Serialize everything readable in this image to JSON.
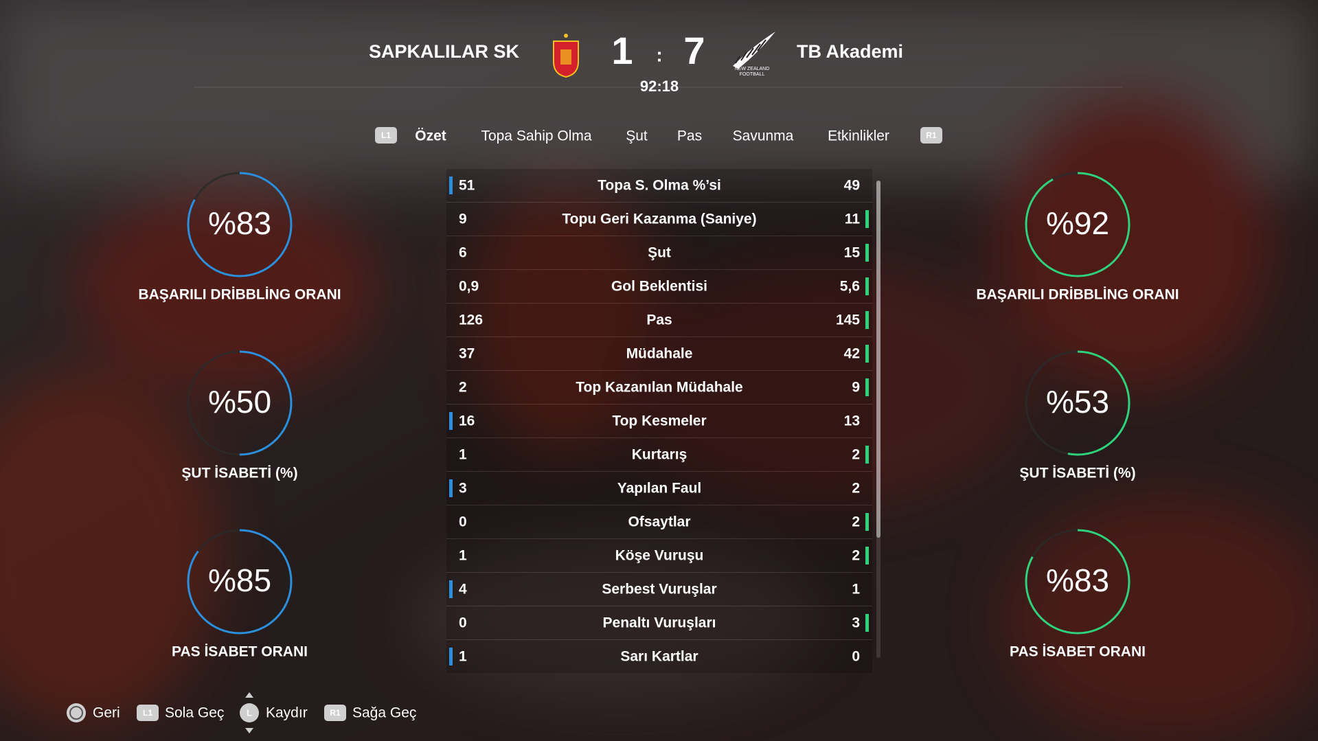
{
  "header": {
    "home_team": "SAPKALILAR SK",
    "home_score": 1,
    "separator": ":",
    "away_score": 7,
    "away_team": "TB Akademi",
    "clock": "92:18",
    "away_logo_text": [
      "NEW ZEALAND",
      "FOOTBALL"
    ]
  },
  "tabs": {
    "prev_button": "L1",
    "items": [
      "Özet",
      "Topa Sahip Olma",
      "Şut",
      "Pas",
      "Savunma",
      "Etkinlikler"
    ],
    "active": 0,
    "next_button": "R1"
  },
  "stats": {
    "home_color": "#2b8fdc",
    "away_color": "#2fd17a",
    "rows": [
      {
        "home": "51",
        "label": "Topa S. Olma %’si",
        "away": "49"
      },
      {
        "home": "9",
        "label": "Topu Geri Kazanma (Saniye)",
        "away": "11"
      },
      {
        "home": "6",
        "label": "Şut",
        "away": "15"
      },
      {
        "home": "0,9",
        "label": "Gol Beklentisi",
        "away": "5,6"
      },
      {
        "home": "126",
        "label": "Pas",
        "away": "145"
      },
      {
        "home": "37",
        "label": "Müdahale",
        "away": "42"
      },
      {
        "home": "2",
        "label": "Top Kazanılan Müdahale",
        "away": "9"
      },
      {
        "home": "16",
        "label": "Top Kesmeler",
        "away": "13"
      },
      {
        "home": "1",
        "label": "Kurtarış",
        "away": "2"
      },
      {
        "home": "3",
        "label": "Yapılan Faul",
        "away": "2"
      },
      {
        "home": "0",
        "label": "Ofsaytlar",
        "away": "2"
      },
      {
        "home": "1",
        "label": "Köşe Vuruşu",
        "away": "2"
      },
      {
        "home": "4",
        "label": "Serbest Vuruşlar",
        "away": "1"
      },
      {
        "home": "0",
        "label": "Penaltı Vuruşları",
        "away": "3"
      },
      {
        "home": "1",
        "label": "Sarı Kartlar",
        "away": "0"
      }
    ]
  },
  "gauges": {
    "home": [
      {
        "value": 83,
        "label": "%83",
        "caption": "BAŞARILI DRİBBLİNG ORANI"
      },
      {
        "value": 50,
        "label": "%50",
        "caption": "ŞUT İSABETİ (%)"
      },
      {
        "value": 85,
        "label": "%85",
        "caption": "PAS İSABET ORANI"
      }
    ],
    "away": [
      {
        "value": 92,
        "label": "%92",
        "caption": "BAŞARILI DRİBBLİNG ORANI"
      },
      {
        "value": 53,
        "label": "%53",
        "caption": "ŞUT İSABETİ (%)"
      },
      {
        "value": 83,
        "label": "%83",
        "caption": "PAS İSABET ORANI"
      }
    ]
  },
  "footer": [
    {
      "text": "Geri"
    },
    {
      "icon": "L1",
      "text": "Sola Geç"
    },
    {
      "icon": "L",
      "text": "Kaydır"
    },
    {
      "icon": "R1",
      "text": "Sağa Geç"
    }
  ]
}
